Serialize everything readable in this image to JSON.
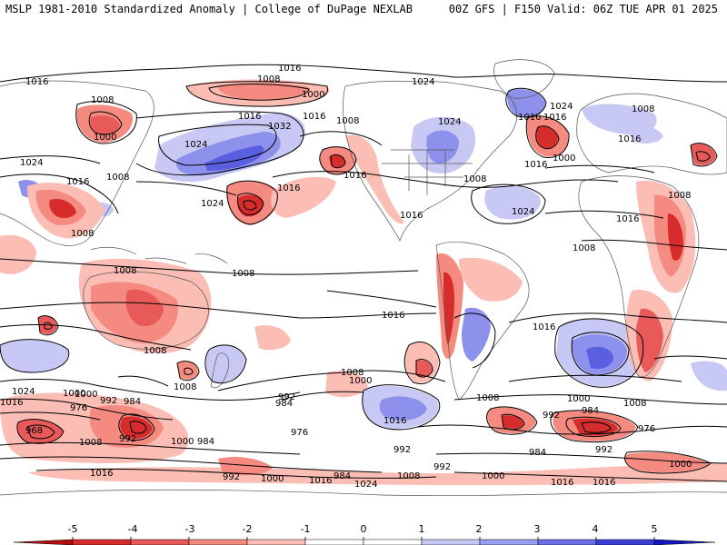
{
  "header": {
    "left_title": "MSLP 1981-2010 Standardized Anomaly | College of DuPage NEXLAB",
    "right_title": "00Z GFS | F150 Valid: 06Z TUE APR 01 2025"
  },
  "colorbar": {
    "ticks": [
      "-5",
      "-4",
      "-3",
      "-2",
      "-1",
      "0",
      "1",
      "2",
      "3",
      "4",
      "5"
    ],
    "colors": [
      "#b40f0f",
      "#d62c2c",
      "#e85a5a",
      "#f48a80",
      "#fbbdb4",
      "#ffffff",
      "#ffffff",
      "#c7c9f4",
      "#9a9ef0",
      "#6a6fe6",
      "#3b3fd6",
      "#1417c0"
    ]
  },
  "map": {
    "land_color": "#ffffff",
    "border_color": "#666666",
    "contour_color": "#000000",
    "isobar_labels": [
      "1016",
      "1008",
      "1000",
      "1016",
      "1024",
      "1016",
      "1008",
      "1000",
      "1024",
      "1032",
      "1016",
      "1008",
      "1024",
      "1016",
      "1016",
      "1024",
      "1016",
      "1008",
      "1024",
      "1016",
      "1008",
      "1016",
      "1024",
      "1008",
      "1016",
      "1008",
      "1008",
      "1000",
      "1008",
      "1008",
      "1016",
      "1016",
      "1016",
      "1016",
      "1024",
      "1016",
      "1008",
      "1008",
      "1024",
      "1000",
      "992",
      "984",
      "1016",
      "976",
      "968",
      "1008",
      "992",
      "1000",
      "984",
      "992",
      "984",
      "1008",
      "1000",
      "1016",
      "1008",
      "1016",
      "1000",
      "984",
      "992",
      "976",
      "992",
      "1008",
      "1016",
      "1000",
      "984",
      "976",
      "992",
      "992",
      "1000",
      "1016",
      "1024",
      "1016",
      "1008",
      "1000",
      "1008",
      "984",
      "992",
      "1000"
    ]
  }
}
